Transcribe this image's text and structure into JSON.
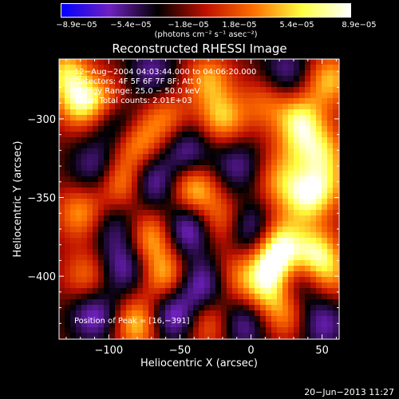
{
  "chart_data": {
    "type": "heatmap",
    "title": "Reconstructed RHESSI Image",
    "xlabel": "Heliocentric X (arcsec)",
    "ylabel": "Heliocentric Y (arcsec)",
    "xlim": [
      -135,
      62
    ],
    "ylim": [
      -440,
      -262
    ],
    "x_ticks": [
      -100,
      -50,
      0,
      50
    ],
    "x_tick_labels": [
      "−100",
      "−50",
      "0",
      "50"
    ],
    "y_ticks": [
      -300,
      -350,
      -400
    ],
    "y_tick_labels": [
      "−300",
      "−350",
      "−400"
    ],
    "colorbar": {
      "ticks": [
        "−8.9e−05",
        "−5.4e−05",
        "−1.8e−05",
        "1.8e−05",
        "5.4e−05",
        "8.9e−05"
      ],
      "units": "(photons cm⁻² s⁻¹ asec⁻²)",
      "range": [
        -8.9e-05,
        8.9e-05
      ],
      "colors": [
        "#0000ff",
        "#7020c0",
        "#000000",
        "#c01000",
        "#ff7000",
        "#ffff40",
        "#ffffff"
      ]
    },
    "info_lines": [
      "12−Aug−2004 04:03:44.000 to 04:06:20.000",
      "Detectors: 4F 5F 6F 7F 8F; Att 0",
      "Energy Range: 25.0 − 50.0 keV",
      "Clean     Total counts: 2.01E+03"
    ],
    "peak_label": "Position of Peak = [16,−391]",
    "peak": [
      16,
      -391
    ]
  },
  "footer": {
    "date": "20−Jun−2013 11:27"
  }
}
